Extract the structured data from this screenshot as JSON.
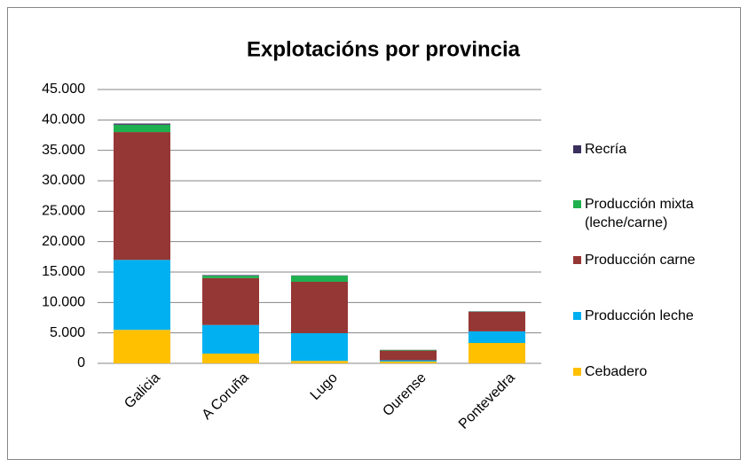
{
  "chart_data": {
    "type": "bar",
    "stacked": true,
    "title": "Explotacións por provincia",
    "categories": [
      "Galicia",
      "A Coruña",
      "Lugo",
      "Ourense",
      "Pontevedra"
    ],
    "series": [
      {
        "name": "Cebadero",
        "color": "#ffc000",
        "values": [
          5500,
          1600,
          400,
          300,
          3350
        ]
      },
      {
        "name": "Producción leche",
        "color": "#00b0f0",
        "values": [
          11500,
          4700,
          4550,
          200,
          1900
        ]
      },
      {
        "name": "Producción carne",
        "color": "#953735",
        "values": [
          21000,
          7700,
          8450,
          1600,
          3200
        ]
      },
      {
        "name": "Producción mixta (leche/carne)",
        "color": "#1fb04f",
        "values": [
          1200,
          400,
          1000,
          100,
          50
        ]
      },
      {
        "name": "Recría",
        "color": "#3b2f5e",
        "values": [
          200,
          100,
          50,
          20,
          50
        ]
      }
    ],
    "ylim": [
      0,
      45000
    ],
    "yticks": [
      0,
      {
        "value": 5000,
        "label": "5.000"
      },
      {
        "value": 10000,
        "label": "10.000"
      },
      {
        "value": 15000,
        "label": "15.000"
      },
      {
        "value": 20000,
        "label": "20.000"
      },
      {
        "value": 25000,
        "label": "25.000"
      },
      {
        "value": 30000,
        "label": "30.000"
      },
      {
        "value": 35000,
        "label": "35.000"
      },
      {
        "value": 40000,
        "label": "40.000"
      },
      {
        "value": 45000,
        "label": "45.000"
      }
    ],
    "grid": true
  }
}
